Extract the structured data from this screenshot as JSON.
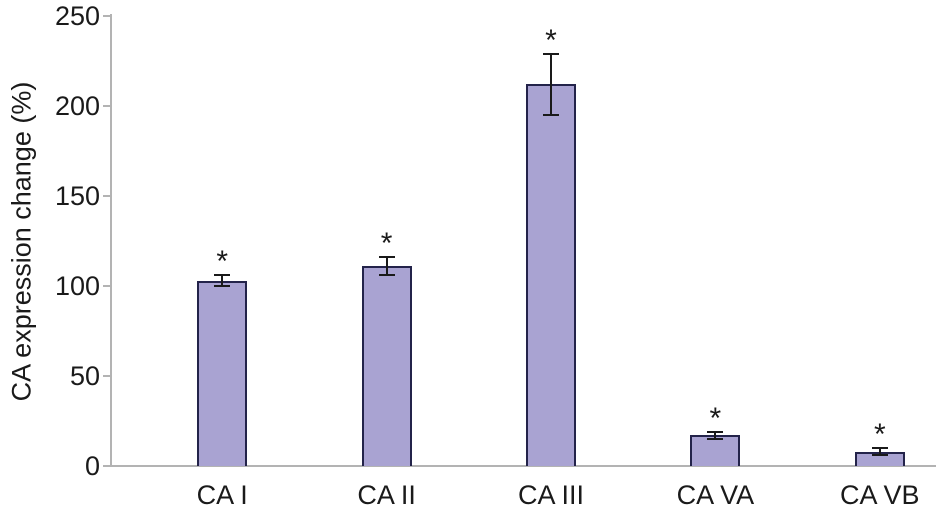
{
  "chart_data": {
    "type": "bar",
    "title": "",
    "ylabel": "CA expression change (%)",
    "xlabel": "",
    "categories": [
      "CA I",
      "CA II",
      "CA III",
      "CA VA",
      "CA VB"
    ],
    "values": [
      103,
      111,
      212,
      17,
      8
    ],
    "errors": [
      3,
      5,
      17,
      2,
      2
    ],
    "significance_markers": [
      "*",
      "*",
      "*",
      "*",
      "*"
    ],
    "ylim": [
      0,
      250
    ],
    "yticks": [
      0,
      50,
      100,
      150,
      200,
      250
    ],
    "grid": false,
    "legend": "none",
    "bar_color": "#a9a3d2",
    "bar_border_color": "#23234a",
    "error_bar_color": "#1a1a1a",
    "axis_color": "#b3b3b3"
  }
}
